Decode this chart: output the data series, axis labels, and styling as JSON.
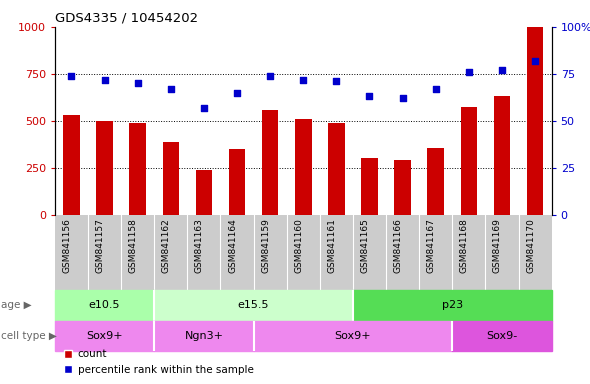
{
  "title": "GDS4335 / 10454202",
  "samples": [
    "GSM841156",
    "GSM841157",
    "GSM841158",
    "GSM841162",
    "GSM841163",
    "GSM841164",
    "GSM841159",
    "GSM841160",
    "GSM841161",
    "GSM841165",
    "GSM841166",
    "GSM841167",
    "GSM841168",
    "GSM841169",
    "GSM841170"
  ],
  "counts": [
    530,
    500,
    490,
    390,
    240,
    350,
    560,
    510,
    490,
    305,
    295,
    355,
    575,
    630,
    1000
  ],
  "percentiles": [
    74,
    72,
    70,
    67,
    57,
    65,
    74,
    72,
    71,
    63,
    62,
    67,
    76,
    77,
    82
  ],
  "ylim_left": [
    0,
    1000
  ],
  "ylim_right": [
    0,
    100
  ],
  "yticks_left": [
    0,
    250,
    500,
    750,
    1000
  ],
  "yticks_right": [
    0,
    25,
    50,
    75,
    100
  ],
  "bar_color": "#cc0000",
  "scatter_color": "#0000cc",
  "age_groups": [
    {
      "label": "e10.5",
      "start": 0,
      "end": 3,
      "color": "#aaffaa"
    },
    {
      "label": "e15.5",
      "start": 3,
      "end": 9,
      "color": "#ccffcc"
    },
    {
      "label": "p23",
      "start": 9,
      "end": 15,
      "color": "#55dd55"
    }
  ],
  "cell_groups": [
    {
      "label": "Sox9+",
      "start": 0,
      "end": 3,
      "color": "#ee88ee"
    },
    {
      "label": "Ngn3+",
      "start": 3,
      "end": 6,
      "color": "#ee88ee"
    },
    {
      "label": "Sox9+",
      "start": 6,
      "end": 12,
      "color": "#ee88ee"
    },
    {
      "label": "Sox9-",
      "start": 12,
      "end": 15,
      "color": "#dd55dd"
    }
  ],
  "age_label": "age",
  "cell_type_label": "cell type",
  "legend_count": "count",
  "legend_percentile": "percentile rank within the sample",
  "bar_width": 0.5,
  "xlabel_bg_color": "#cccccc",
  "plot_bg_color": "#ffffff",
  "fig_bg_color": "#ffffff",
  "grid_lines": [
    250,
    500,
    750
  ],
  "age_dividers": [
    2.5,
    8.5
  ],
  "cell_dividers": [
    2.5,
    5.5,
    11.5
  ]
}
